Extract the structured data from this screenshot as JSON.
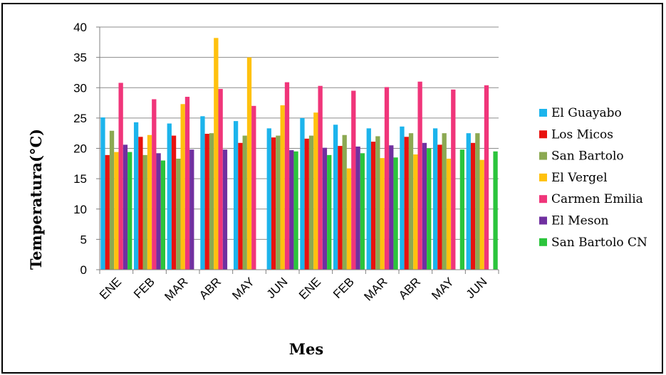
{
  "chart_data": {
    "type": "bar",
    "title": "",
    "xlabel": "Mes",
    "ylabel": "Temperatura(°C)",
    "ylim": [
      0,
      40
    ],
    "yticks": [
      0,
      5,
      10,
      15,
      20,
      25,
      30,
      35,
      40
    ],
    "grid": "horizontal",
    "legend_position": "right",
    "categories": [
      "ENE",
      "FEB",
      "MAR",
      "ABR",
      "MAY",
      "JUN",
      "ENE",
      "FEB",
      "MAR",
      "ABR",
      "MAY",
      "JUN"
    ],
    "series": [
      {
        "name": "El Guayabo",
        "color": "#1CB4EC",
        "values": [
          25.1,
          24.3,
          24.1,
          25.3,
          24.5,
          23.3,
          25.0,
          23.9,
          23.3,
          23.6,
          23.3,
          22.5
        ]
      },
      {
        "name": "Los Micos",
        "color": "#E8120F",
        "values": [
          18.9,
          21.9,
          22.1,
          22.4,
          20.9,
          21.8,
          21.6,
          20.4,
          21.1,
          21.9,
          20.6,
          20.9
        ]
      },
      {
        "name": "San Bartolo",
        "color": "#8CA952",
        "values": [
          22.9,
          18.9,
          18.3,
          22.5,
          22.1,
          22.1,
          22.1,
          22.2,
          22.0,
          22.5,
          22.5,
          22.5
        ]
      },
      {
        "name": "El Vergel",
        "color": "#FFC10E",
        "values": [
          19.4,
          22.2,
          27.3,
          38.2,
          35.0,
          27.1,
          25.9,
          16.7,
          18.4,
          19.0,
          18.3,
          18.1
        ]
      },
      {
        "name": "Carmen Emilia",
        "color": "#F0357A",
        "values": [
          30.8,
          28.1,
          28.5,
          29.8,
          27.0,
          30.9,
          30.3,
          29.5,
          30.1,
          31.0,
          29.7,
          30.4
        ]
      },
      {
        "name": "El Meson",
        "color": "#7030A0",
        "values": [
          20.6,
          19.2,
          19.8,
          19.8,
          null,
          19.7,
          20.1,
          20.3,
          20.5,
          20.9,
          null,
          null
        ]
      },
      {
        "name": "San Bartolo CN",
        "color": "#2BC43C",
        "values": [
          19.4,
          18.0,
          null,
          null,
          null,
          19.5,
          18.9,
          19.2,
          18.5,
          20.0,
          19.8,
          19.5
        ]
      }
    ]
  }
}
